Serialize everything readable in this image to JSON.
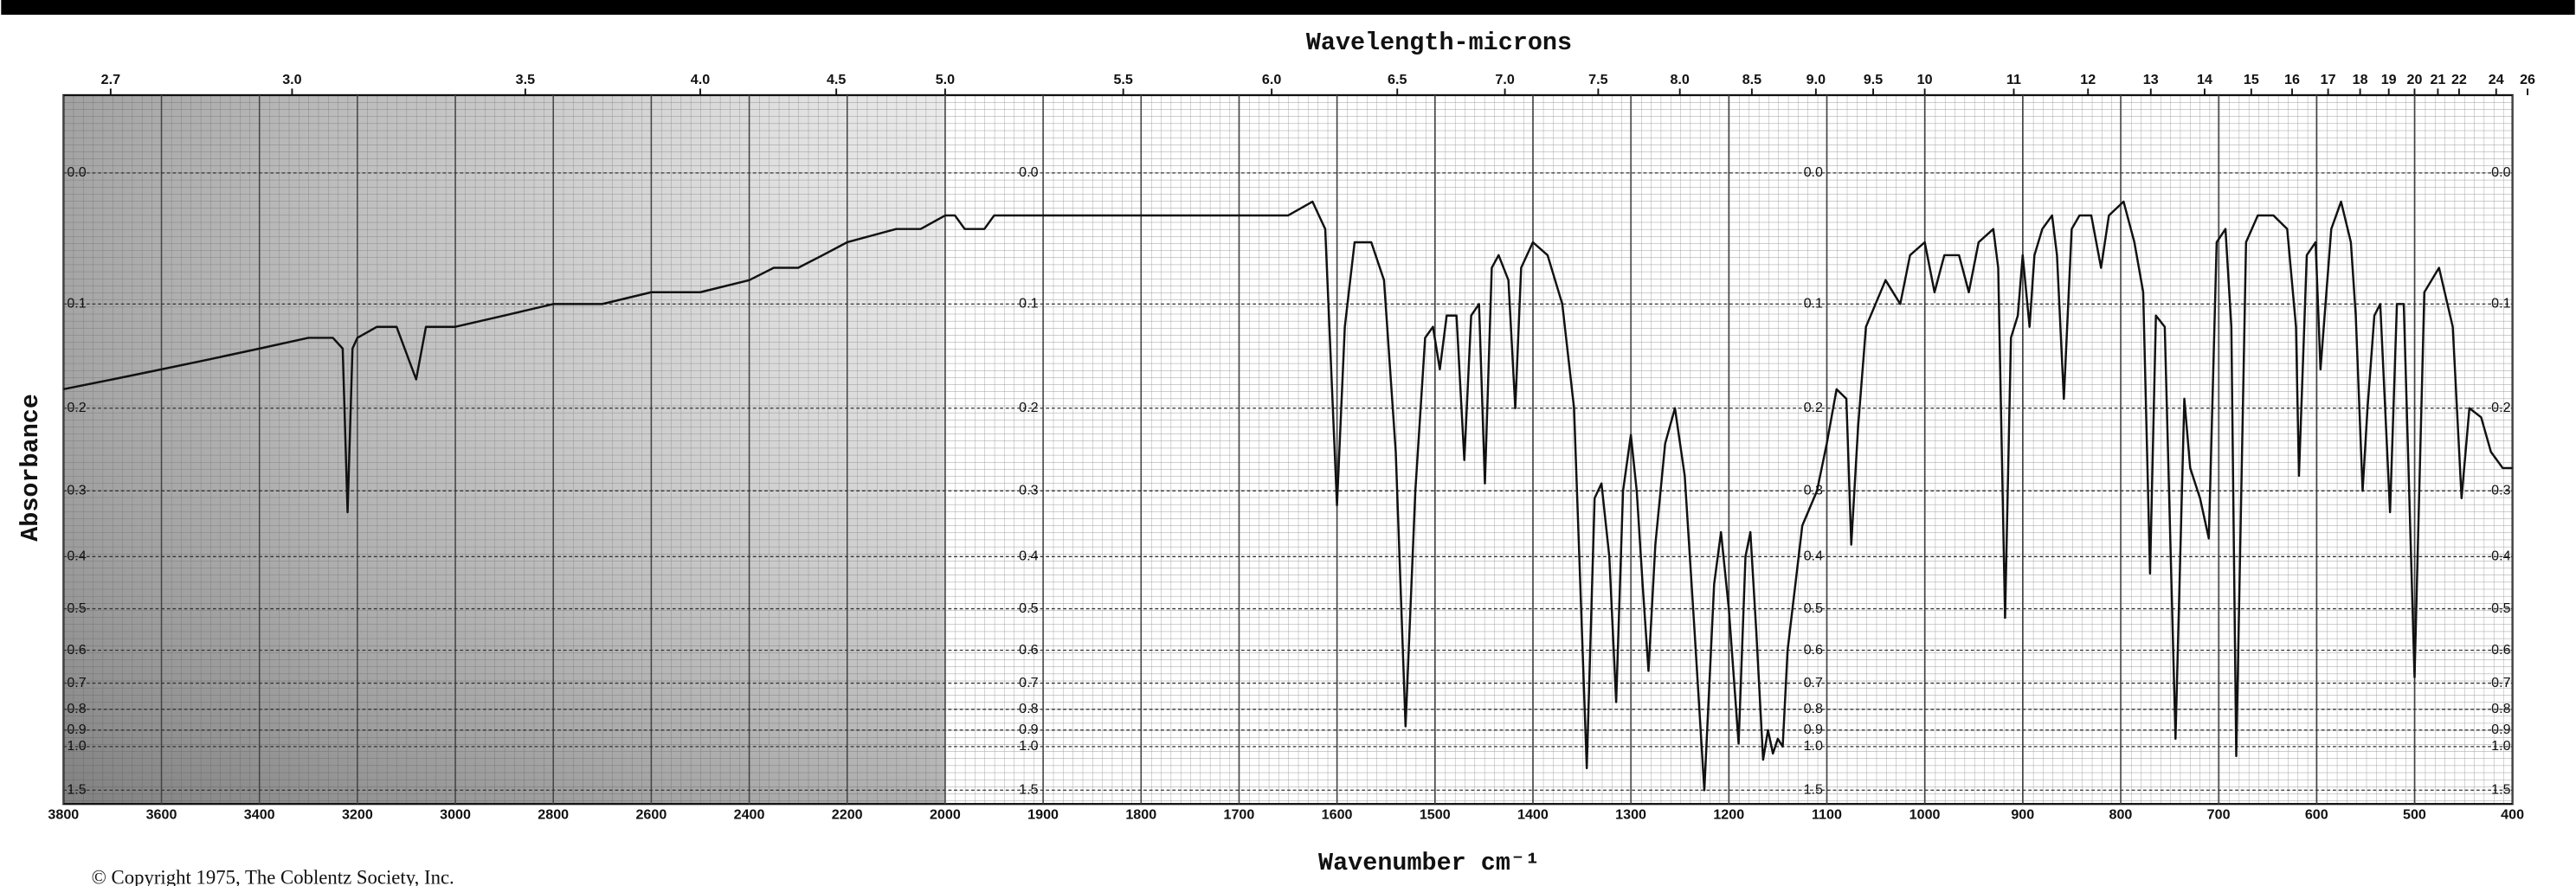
{
  "chart_data": {
    "type": "line",
    "x_label": "Wavenumber cm⁻¹",
    "x2_label": "Wavelength-microns",
    "y_label": "Absorbance",
    "annotation": "© Copyright 1975, The Coblentz Society, Inc.",
    "x": [
      3800,
      3700,
      3600,
      3500,
      3400,
      3300,
      3250,
      3230,
      3220,
      3210,
      3200,
      3160,
      3120,
      3080,
      3060,
      3000,
      2900,
      2800,
      2700,
      2600,
      2500,
      2400,
      2350,
      2300,
      2250,
      2200,
      2100,
      2050,
      2000,
      1990,
      1980,
      1960,
      1950,
      1900,
      1800,
      1700,
      1650,
      1625,
      1612,
      1600,
      1592,
      1582,
      1565,
      1552,
      1540,
      1530,
      1520,
      1510,
      1502,
      1495,
      1488,
      1478,
      1470,
      1463,
      1455,
      1449,
      1442,
      1435,
      1425,
      1418,
      1412,
      1400,
      1385,
      1370,
      1358,
      1345,
      1337,
      1330,
      1322,
      1315,
      1308,
      1300,
      1294,
      1288,
      1282,
      1275,
      1265,
      1255,
      1245,
      1235,
      1225,
      1215,
      1208,
      1200,
      1190,
      1183,
      1178,
      1172,
      1165,
      1160,
      1155,
      1150,
      1145,
      1140,
      1125,
      1110,
      1100,
      1090,
      1080,
      1075,
      1068,
      1060,
      1040,
      1025,
      1015,
      1000,
      990,
      980,
      965,
      955,
      945,
      930,
      925,
      918,
      912,
      905,
      900,
      893,
      888,
      880,
      870,
      865,
      858,
      850,
      842,
      830,
      820,
      812,
      797,
      786,
      777,
      770,
      764,
      755,
      744,
      735,
      729,
      719,
      710,
      702,
      693,
      687,
      682,
      672,
      660,
      644,
      630,
      621,
      618,
      610,
      601,
      596,
      585,
      575,
      565,
      560,
      553,
      548,
      541,
      535,
      525,
      518,
      511,
      500,
      490,
      475,
      461,
      452,
      444,
      432,
      422,
      410,
      400
    ],
    "values": [
      0.18,
      0.17,
      0.16,
      0.15,
      0.14,
      0.13,
      0.13,
      0.14,
      0.33,
      0.14,
      0.13,
      0.12,
      0.12,
      0.17,
      0.12,
      0.12,
      0.11,
      0.1,
      0.1,
      0.09,
      0.09,
      0.08,
      0.07,
      0.07,
      0.06,
      0.05,
      0.04,
      0.04,
      0.03,
      0.03,
      0.04,
      0.04,
      0.03,
      0.03,
      0.03,
      0.03,
      0.03,
      0.02,
      0.04,
      0.32,
      0.12,
      0.05,
      0.05,
      0.08,
      0.25,
      0.88,
      0.3,
      0.13,
      0.12,
      0.16,
      0.11,
      0.11,
      0.26,
      0.11,
      0.1,
      0.29,
      0.07,
      0.06,
      0.08,
      0.2,
      0.07,
      0.05,
      0.06,
      0.1,
      0.2,
      1.18,
      0.31,
      0.29,
      0.4,
      0.77,
      0.3,
      0.23,
      0.3,
      0.45,
      0.66,
      0.38,
      0.24,
      0.2,
      0.28,
      0.55,
      1.5,
      0.45,
      0.36,
      0.5,
      0.98,
      0.4,
      0.36,
      0.55,
      1.1,
      0.9,
      1.05,
      0.95,
      1.0,
      0.6,
      0.35,
      0.3,
      0.24,
      0.18,
      0.19,
      0.38,
      0.22,
      0.12,
      0.08,
      0.1,
      0.06,
      0.05,
      0.09,
      0.06,
      0.06,
      0.09,
      0.05,
      0.04,
      0.07,
      0.52,
      0.13,
      0.11,
      0.06,
      0.12,
      0.06,
      0.04,
      0.03,
      0.06,
      0.19,
      0.04,
      0.03,
      0.03,
      0.07,
      0.03,
      0.02,
      0.05,
      0.09,
      0.43,
      0.11,
      0.12,
      0.95,
      0.19,
      0.27,
      0.31,
      0.37,
      0.05,
      0.04,
      0.12,
      1.07,
      0.05,
      0.03,
      0.03,
      0.04,
      0.12,
      0.28,
      0.06,
      0.05,
      0.16,
      0.04,
      0.02,
      0.05,
      0.11,
      0.3,
      0.2,
      0.11,
      0.1,
      0.33,
      0.1,
      0.1,
      0.68,
      0.09,
      0.07,
      0.12,
      0.31,
      0.2,
      0.21,
      0.25,
      0.27,
      0.27
    ],
    "color": "#111111",
    "xlim": [
      3800,
      400
    ],
    "xscale": {
      "type": "piecewise",
      "break": 2000,
      "factor": 2
    },
    "xticks": [
      3800,
      3600,
      3400,
      3200,
      3000,
      2800,
      2600,
      2400,
      2200,
      2000,
      1900,
      1800,
      1700,
      1600,
      1500,
      1400,
      1300,
      1200,
      1100,
      1000,
      900,
      800,
      700,
      600,
      500,
      400
    ],
    "x2ticks": [
      2.7,
      {
        "value": 3,
        "label": "3.0"
      },
      3.5,
      {
        "value": 4,
        "label": "4.0"
      },
      4.5,
      {
        "value": 5,
        "label": "5.0"
      },
      5.5,
      {
        "value": 6,
        "label": "6.0"
      },
      6.5,
      {
        "value": 7,
        "label": "7.0"
      },
      7.5,
      {
        "value": 8,
        "label": "8.0"
      },
      8.5,
      {
        "value": 9,
        "label": "9.0"
      },
      9.5,
      10,
      11,
      12,
      13,
      14,
      15,
      16,
      17,
      18,
      19,
      20,
      21,
      22,
      24,
      26
    ],
    "ylim": [
      -0.05,
      2
    ],
    "yscale": "transmittance",
    "yticks": [
      {
        "value": 0,
        "label": "0.0"
      },
      0.1,
      0.2,
      0.3,
      0.4,
      0.5,
      0.6,
      0.7,
      0.8,
      0.9,
      {
        "value": 1,
        "label": "1.0"
      },
      1.5
    ],
    "grid": true
  }
}
